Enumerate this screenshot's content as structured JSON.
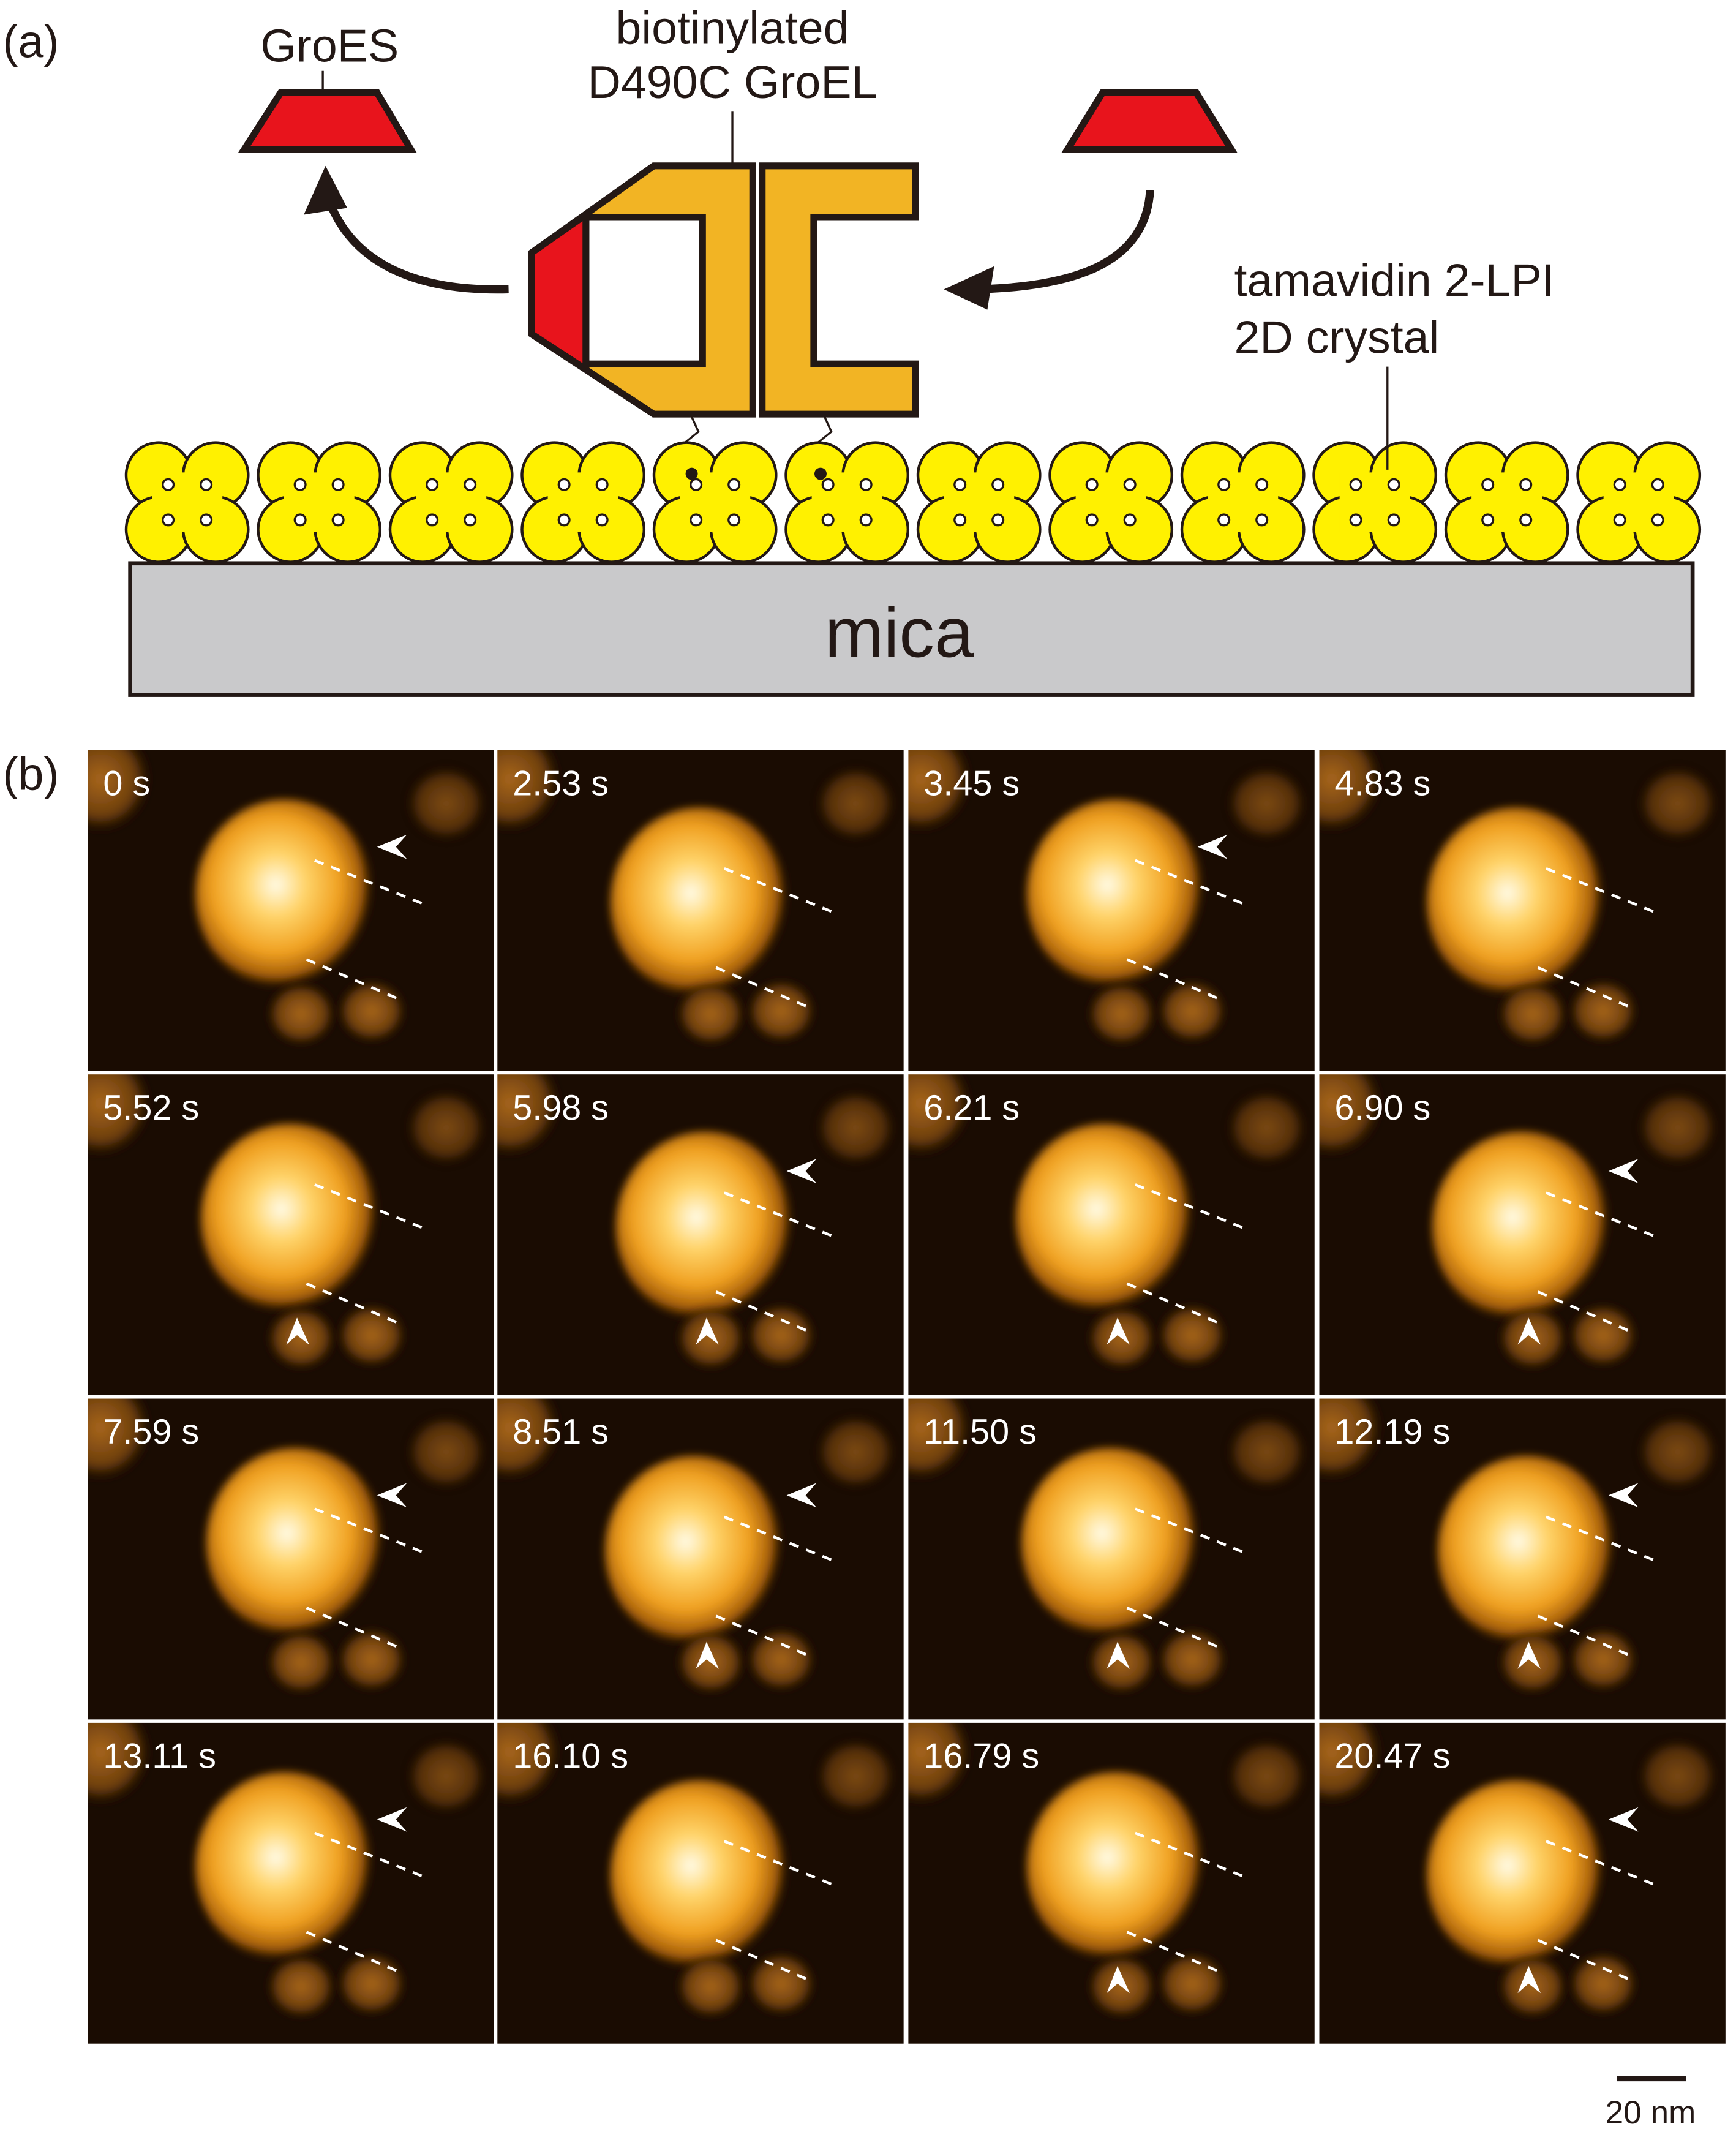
{
  "panel_a": {
    "label": "(a)",
    "groes_label": "GroES",
    "groel_label": [
      "biotinylated",
      "D490C GroEL"
    ],
    "crystal_label": [
      "tamavidin 2-LPI",
      "2D crystal"
    ],
    "substrate_label": "mica"
  },
  "panel_b": {
    "label": "(b)",
    "frames": [
      {
        "time": "0 s"
      },
      {
        "time": "2.53 s"
      },
      {
        "time": "3.45 s"
      },
      {
        "time": "4.83 s"
      },
      {
        "time": "5.52 s"
      },
      {
        "time": "5.98 s"
      },
      {
        "time": "6.21 s"
      },
      {
        "time": "6.90 s"
      },
      {
        "time": "7.59 s"
      },
      {
        "time": "8.51 s"
      },
      {
        "time": "11.50 s"
      },
      {
        "time": "12.19 s"
      },
      {
        "time": "13.11 s"
      },
      {
        "time": "16.10 s"
      },
      {
        "time": "16.79 s"
      },
      {
        "time": "20.47 s"
      }
    ],
    "scale_bar": "20 nm"
  }
}
